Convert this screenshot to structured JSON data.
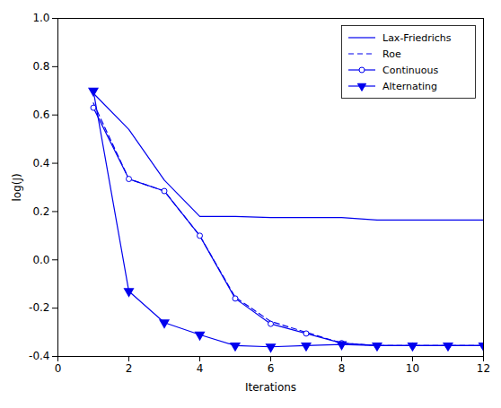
{
  "chart_data": {
    "type": "line",
    "xlabel": "Iterations",
    "ylabel": "log(J)",
    "x": [
      1,
      2,
      3,
      4,
      5,
      6,
      7,
      8,
      9,
      10,
      11,
      12
    ],
    "series": [
      {
        "name": "Lax-Friedrichs",
        "color": "#0000EE",
        "line_style": "solid",
        "marker": "none",
        "values": [
          0.69,
          0.54,
          0.33,
          0.18,
          0.18,
          0.175,
          0.175,
          0.175,
          0.165,
          0.165,
          0.165,
          0.165
        ]
      },
      {
        "name": "Roe",
        "color": "#0000EE",
        "line_style": "dashed",
        "marker": "none",
        "values": [
          0.65,
          0.335,
          0.285,
          0.1,
          -0.155,
          -0.255,
          -0.3,
          -0.345,
          -0.355,
          -0.355,
          -0.355,
          -0.355
        ]
      },
      {
        "name": "Continuous",
        "color": "#0000EE",
        "line_style": "solid",
        "marker": "circle",
        "values": [
          0.63,
          0.335,
          0.285,
          0.1,
          -0.16,
          -0.265,
          -0.305,
          -0.345,
          -0.355,
          -0.355,
          -0.355,
          -0.355
        ]
      },
      {
        "name": "Alternating",
        "color": "#0000EE",
        "line_style": "solid",
        "marker": "triangle_down",
        "values": [
          0.7,
          -0.13,
          -0.26,
          -0.31,
          -0.355,
          -0.36,
          -0.355,
          -0.35,
          -0.355,
          -0.355,
          -0.355,
          -0.355
        ]
      }
    ],
    "xlim": [
      0,
      12
    ],
    "xticks": [
      0,
      2,
      4,
      6,
      8,
      10,
      12
    ],
    "ylim": [
      -0.4,
      1.0
    ],
    "yticks": [
      -0.4,
      -0.2,
      {
        "value": 0,
        "label": "0.0"
      },
      0.2,
      0.4,
      0.6,
      0.8,
      {
        "value": 1,
        "label": "1.0"
      }
    ],
    "legend": "upper right",
    "grid": false
  }
}
